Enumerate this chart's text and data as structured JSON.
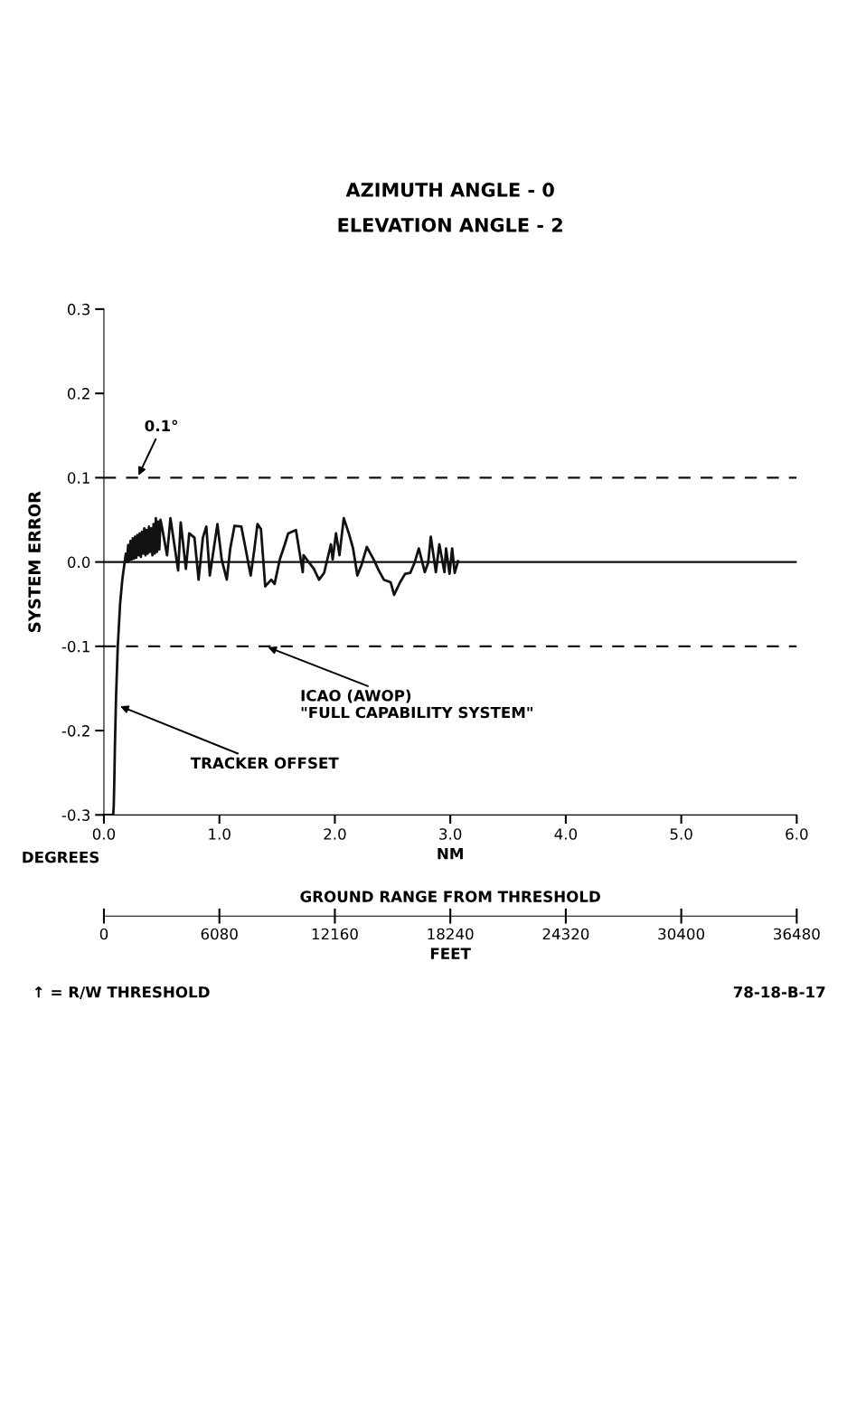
{
  "chart_data": {
    "type": "line",
    "title": "AZIMUTH ANGLE - 0",
    "subtitle": "ELEVATION ANGLE - 2",
    "xlabel": "NM",
    "ylabel": "SYSTEM ERROR",
    "x2label": "FEET",
    "xlim": [
      0,
      6
    ],
    "xticks": [
      {
        "value": 0,
        "label": "0.0"
      },
      {
        "value": 1,
        "label": "1.0"
      },
      {
        "value": 2,
        "label": "2.0"
      },
      {
        "value": 3,
        "label": "3.0"
      },
      {
        "value": 4,
        "label": "4.0"
      },
      {
        "value": 5,
        "label": "5.0"
      },
      {
        "value": 6,
        "label": "6.0"
      }
    ],
    "x2lim": [
      0,
      36480
    ],
    "x2ticks": [
      0,
      6080,
      12160,
      18240,
      24320,
      30400,
      36480
    ],
    "ylim": [
      -0.3,
      0.3
    ],
    "yticks": [
      {
        "value": -0.3,
        "label": "-0.3"
      },
      {
        "value": -0.2,
        "label": "-0.2"
      },
      {
        "value": -0.1,
        "label": "-0.1"
      },
      {
        "value": 0,
        "label": "0.0"
      },
      0.1,
      0.2,
      0.3
    ],
    "grid": false,
    "marker": "none",
    "line_style": "solid",
    "series": [
      {
        "color": "#111111",
        "x": [
          0.0,
          0.08,
          0.085,
          0.09,
          0.095,
          0.105,
          0.12,
          0.14,
          0.16,
          0.18,
          0.19,
          0.2,
          0.21,
          0.22,
          0.23,
          0.24,
          0.25,
          0.26,
          0.27,
          0.28,
          0.29,
          0.3,
          0.31,
          0.32,
          0.33,
          0.34,
          0.35,
          0.36,
          0.37,
          0.38,
          0.39,
          0.4,
          0.41,
          0.42,
          0.43,
          0.44,
          0.45,
          0.46,
          0.47,
          0.48,
          0.49,
          0.502,
          0.547,
          0.576,
          0.643,
          0.665,
          0.71,
          0.739,
          0.784,
          0.82,
          0.857,
          0.887,
          0.917,
          0.983,
          1.02,
          1.064,
          1.094,
          1.131,
          1.19,
          1.227,
          1.271,
          1.301,
          1.33,
          1.36,
          1.397,
          1.449,
          1.478,
          1.523,
          1.567,
          1.596,
          1.663,
          1.722,
          1.729,
          1.818,
          1.863,
          1.907,
          1.966,
          1.981,
          2.01,
          2.04,
          2.077,
          2.121,
          2.158,
          2.195,
          2.232,
          2.277,
          2.336,
          2.38,
          2.424,
          2.483,
          2.513,
          2.565,
          2.609,
          2.653,
          2.69,
          2.727,
          2.779,
          2.808,
          2.831,
          2.875,
          2.905,
          2.949,
          2.963,
          2.993,
          3.016,
          3.038,
          3.067
        ],
        "values": [
          -0.3,
          -0.3,
          -0.29,
          -0.26,
          -0.22,
          -0.16,
          -0.1,
          -0.05,
          -0.02,
          0.0,
          0.01,
          0.0,
          0.02,
          0.002,
          0.025,
          0.003,
          0.028,
          0.004,
          0.03,
          0.005,
          0.032,
          0.008,
          0.034,
          0.006,
          0.036,
          0.01,
          0.04,
          0.008,
          0.038,
          0.01,
          0.042,
          0.012,
          0.04,
          0.008,
          0.045,
          0.01,
          0.052,
          0.012,
          0.048,
          0.015,
          0.05,
          0.042,
          0.008,
          0.052,
          -0.01,
          0.047,
          -0.008,
          0.034,
          0.029,
          -0.021,
          0.029,
          0.042,
          -0.016,
          0.045,
          0.003,
          -0.021,
          0.016,
          0.043,
          0.042,
          0.016,
          -0.016,
          0.013,
          0.045,
          0.039,
          -0.029,
          -0.021,
          -0.026,
          0.003,
          0.021,
          0.034,
          0.038,
          -0.012,
          0.008,
          -0.008,
          -0.021,
          -0.013,
          0.021,
          0.003,
          0.034,
          0.008,
          0.052,
          0.034,
          0.016,
          -0.016,
          -0.003,
          0.018,
          0.003,
          -0.01,
          -0.021,
          -0.024,
          -0.039,
          -0.024,
          -0.014,
          -0.013,
          -0.001,
          0.016,
          -0.012,
          -0.001,
          0.03,
          -0.012,
          0.021,
          -0.012,
          0.016,
          -0.014,
          0.016,
          -0.013,
          0.001
        ]
      }
    ],
    "ref_lines": [
      {
        "axis": "y",
        "value": 0.1,
        "color": "#111111",
        "line_style": "dashed"
      },
      {
        "axis": "y",
        "value": 0,
        "color": "#111111",
        "line_style": "solid"
      },
      {
        "axis": "y",
        "value": -0.1,
        "color": "#111111",
        "line_style": "dashed"
      }
    ],
    "annotations": [
      {
        "text": "0.1°",
        "x": 0.29,
        "y": 0.1
      },
      {
        "text": "ICAO (AWOP)\n\"FULL CAPABILITY SYSTEM\"",
        "x": 1.4,
        "y": -0.1
      },
      {
        "text": "TRACKER OFFSET",
        "x": 0.12,
        "y": -0.17
      },
      "DEGREES",
      "GROUND RANGE FROM THRESHOLD",
      "↑ = R/W THRESHOLD",
      "78-18-B-17"
    ]
  }
}
